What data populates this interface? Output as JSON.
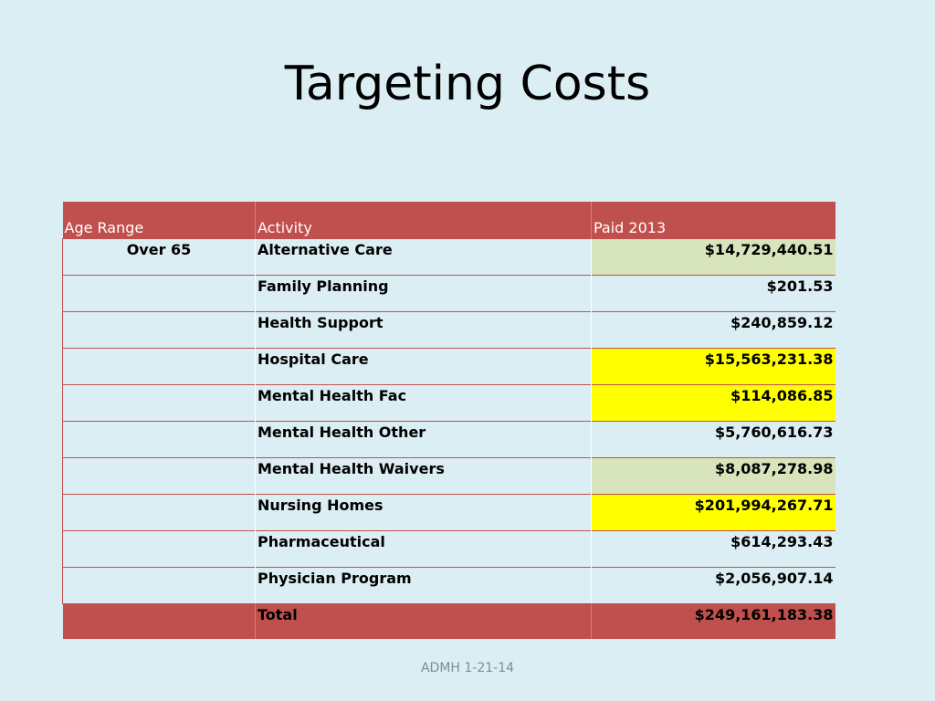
{
  "slide": {
    "title": "Targeting Costs",
    "footer": "ADMH 1-21-14"
  },
  "table": {
    "headers": [
      "Age Range",
      "Activity",
      "Paid 2013"
    ],
    "rows": [
      {
        "age": "Over 65",
        "activity": "Alternative Care",
        "paid": "$14,729,440.51",
        "highlight": "green"
      },
      {
        "age": "",
        "activity": "Family Planning",
        "paid": "$201.53",
        "highlight": ""
      },
      {
        "age": "",
        "activity": "Health Support",
        "paid": "$240,859.12",
        "highlight": ""
      },
      {
        "age": "",
        "activity": "Hospital Care",
        "paid": "$15,563,231.38",
        "highlight": "yellow"
      },
      {
        "age": "",
        "activity": "Mental Health Fac",
        "paid": "$114,086.85",
        "highlight": "yellow"
      },
      {
        "age": "",
        "activity": "Mental Health Other",
        "paid": "$5,760,616.73",
        "highlight": ""
      },
      {
        "age": "",
        "activity": "Mental Health Waivers",
        "paid": "$8,087,278.98",
        "highlight": "green"
      },
      {
        "age": "",
        "activity": "Nursing Homes",
        "paid": "$201,994,267.71",
        "highlight": "yellow"
      },
      {
        "age": "",
        "activity": "Pharmaceutical",
        "paid": "$614,293.43",
        "highlight": ""
      },
      {
        "age": "",
        "activity": "Physician Program",
        "paid": "$2,056,907.14",
        "highlight": ""
      }
    ],
    "total": {
      "age": "",
      "activity": "Total",
      "paid": "$249,161,183.38"
    }
  },
  "colors": {
    "background": "#dbeef4",
    "header": "#c0504d",
    "highlight_green": "#d8e4bc",
    "highlight_yellow": "#ffff00"
  }
}
